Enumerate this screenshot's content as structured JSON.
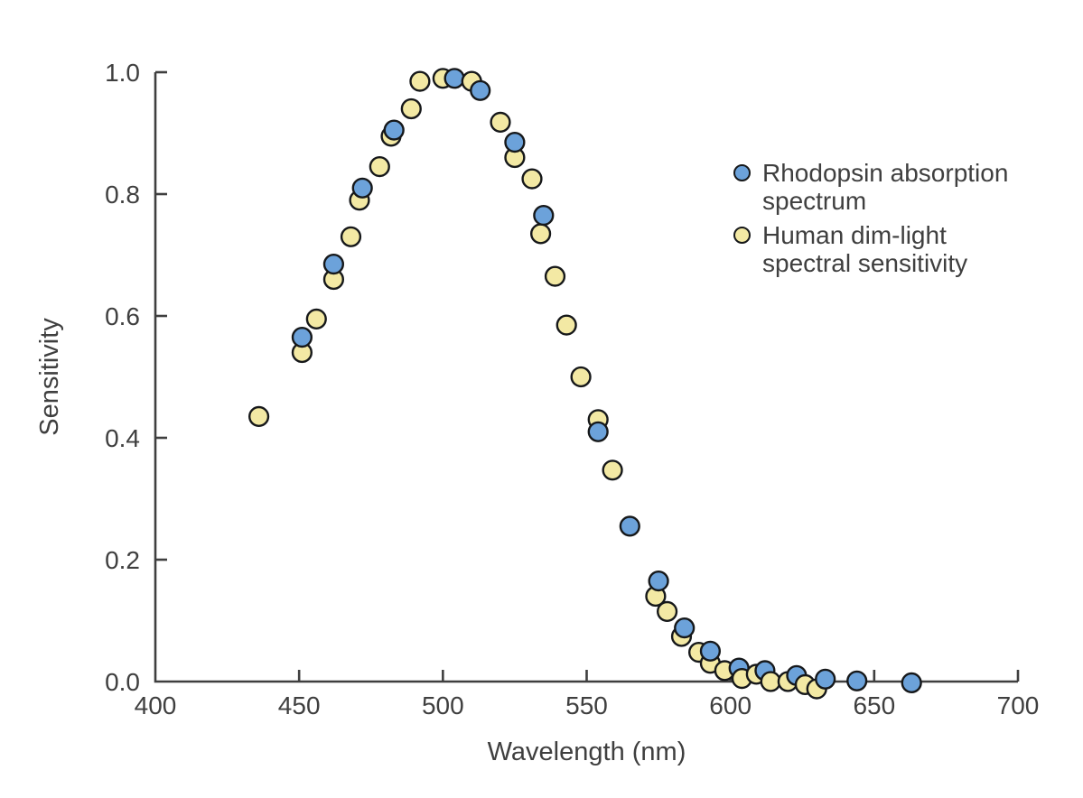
{
  "figure": {
    "background": "#ffffff"
  },
  "chart_data": {
    "type": "scatter",
    "title": "",
    "xlabel": "Wavelength (nm)",
    "ylabel": "Sensitivity",
    "xlim": [
      400,
      700
    ],
    "ylim": [
      0.0,
      1.0
    ],
    "xticks": [
      400,
      450,
      500,
      550,
      600,
      650,
      700
    ],
    "yticks": [
      0.0,
      0.2,
      0.4,
      0.6,
      0.8,
      1.0
    ],
    "grid": false,
    "legend_position": "upper-right",
    "axis_color": "#3f3f3f",
    "text_color": "#3f3f3f",
    "marker_stroke": "#16181a",
    "series": [
      {
        "name": "Rhodopsin absorption spectrum",
        "legend_lines": [
          "Rhodopsin absorption",
          "spectrum"
        ],
        "color": "#6CA2DA",
        "points": [
          [
            451,
            0.565
          ],
          [
            462,
            0.685
          ],
          [
            472,
            0.81
          ],
          [
            483,
            0.905
          ],
          [
            504,
            0.99
          ],
          [
            513,
            0.97
          ],
          [
            525,
            0.885
          ],
          [
            535,
            0.765
          ],
          [
            554,
            0.41
          ],
          [
            565,
            0.255
          ],
          [
            575,
            0.165
          ],
          [
            584,
            0.088
          ],
          [
            593,
            0.05
          ],
          [
            603,
            0.022
          ],
          [
            612,
            0.018
          ],
          [
            623,
            0.01
          ],
          [
            633,
            0.004
          ],
          [
            644,
            0.001
          ],
          [
            663,
            -0.002
          ]
        ]
      },
      {
        "name": "Human dim-light spectral sensitivity",
        "legend_lines": [
          "Human dim-light",
          "spectral sensitivity"
        ],
        "color": "#F3E9A4",
        "points": [
          [
            436,
            0.435
          ],
          [
            451,
            0.54
          ],
          [
            456,
            0.595
          ],
          [
            462,
            0.66
          ],
          [
            468,
            0.73
          ],
          [
            471,
            0.79
          ],
          [
            478,
            0.845
          ],
          [
            482,
            0.895
          ],
          [
            489,
            0.94
          ],
          [
            492,
            0.985
          ],
          [
            500,
            0.99
          ],
          [
            510,
            0.985
          ],
          [
            520,
            0.918
          ],
          [
            525,
            0.86
          ],
          [
            531,
            0.825
          ],
          [
            534,
            0.735
          ],
          [
            539,
            0.665
          ],
          [
            543,
            0.585
          ],
          [
            548,
            0.5
          ],
          [
            554,
            0.43
          ],
          [
            559,
            0.347
          ],
          [
            574,
            0.14
          ],
          [
            578,
            0.115
          ],
          [
            583,
            0.074
          ],
          [
            589,
            0.048
          ],
          [
            593,
            0.03
          ],
          [
            598,
            0.018
          ],
          [
            604,
            0.005
          ],
          [
            609,
            0.012
          ],
          [
            614,
            0.0
          ],
          [
            620,
            0.0
          ],
          [
            626,
            -0.005
          ],
          [
            630,
            -0.012
          ]
        ]
      }
    ]
  }
}
